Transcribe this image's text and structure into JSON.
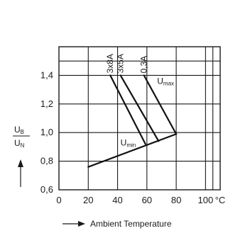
{
  "chart_data": {
    "type": "line",
    "xlabel": "Ambient Temperature",
    "x_unit": "°C",
    "x_ticks": [
      "0",
      "20",
      "40",
      "60",
      "80",
      "100"
    ],
    "xlim": [
      0,
      110
    ],
    "ylabel": {
      "top": "U",
      "top_sub": "B",
      "bottom": "U",
      "bottom_sub": "N"
    },
    "y_ticks": [
      "0,6",
      "0,8",
      "1,0",
      "1,2",
      "1,4"
    ],
    "ylim": [
      0.6,
      1.6
    ],
    "grid": true,
    "series": [
      {
        "name": "3x8A",
        "x": [
          35,
          59
        ],
        "y": [
          1.4,
          0.92
        ]
      },
      {
        "name": "3x5A",
        "x": [
          42,
          68
        ],
        "y": [
          1.4,
          0.94
        ]
      },
      {
        "name": "0,3A",
        "x": [
          58,
          80
        ],
        "y": [
          1.4,
          0.99
        ]
      },
      {
        "name": "Umin",
        "x": [
          20,
          80
        ],
        "y": [
          0.76,
          0.99
        ]
      }
    ],
    "annotations": [
      {
        "text": "U",
        "sub": "max",
        "x": 67,
        "y": 1.34
      },
      {
        "text": "U",
        "sub": "min",
        "x": 42,
        "y": 0.91
      }
    ]
  }
}
